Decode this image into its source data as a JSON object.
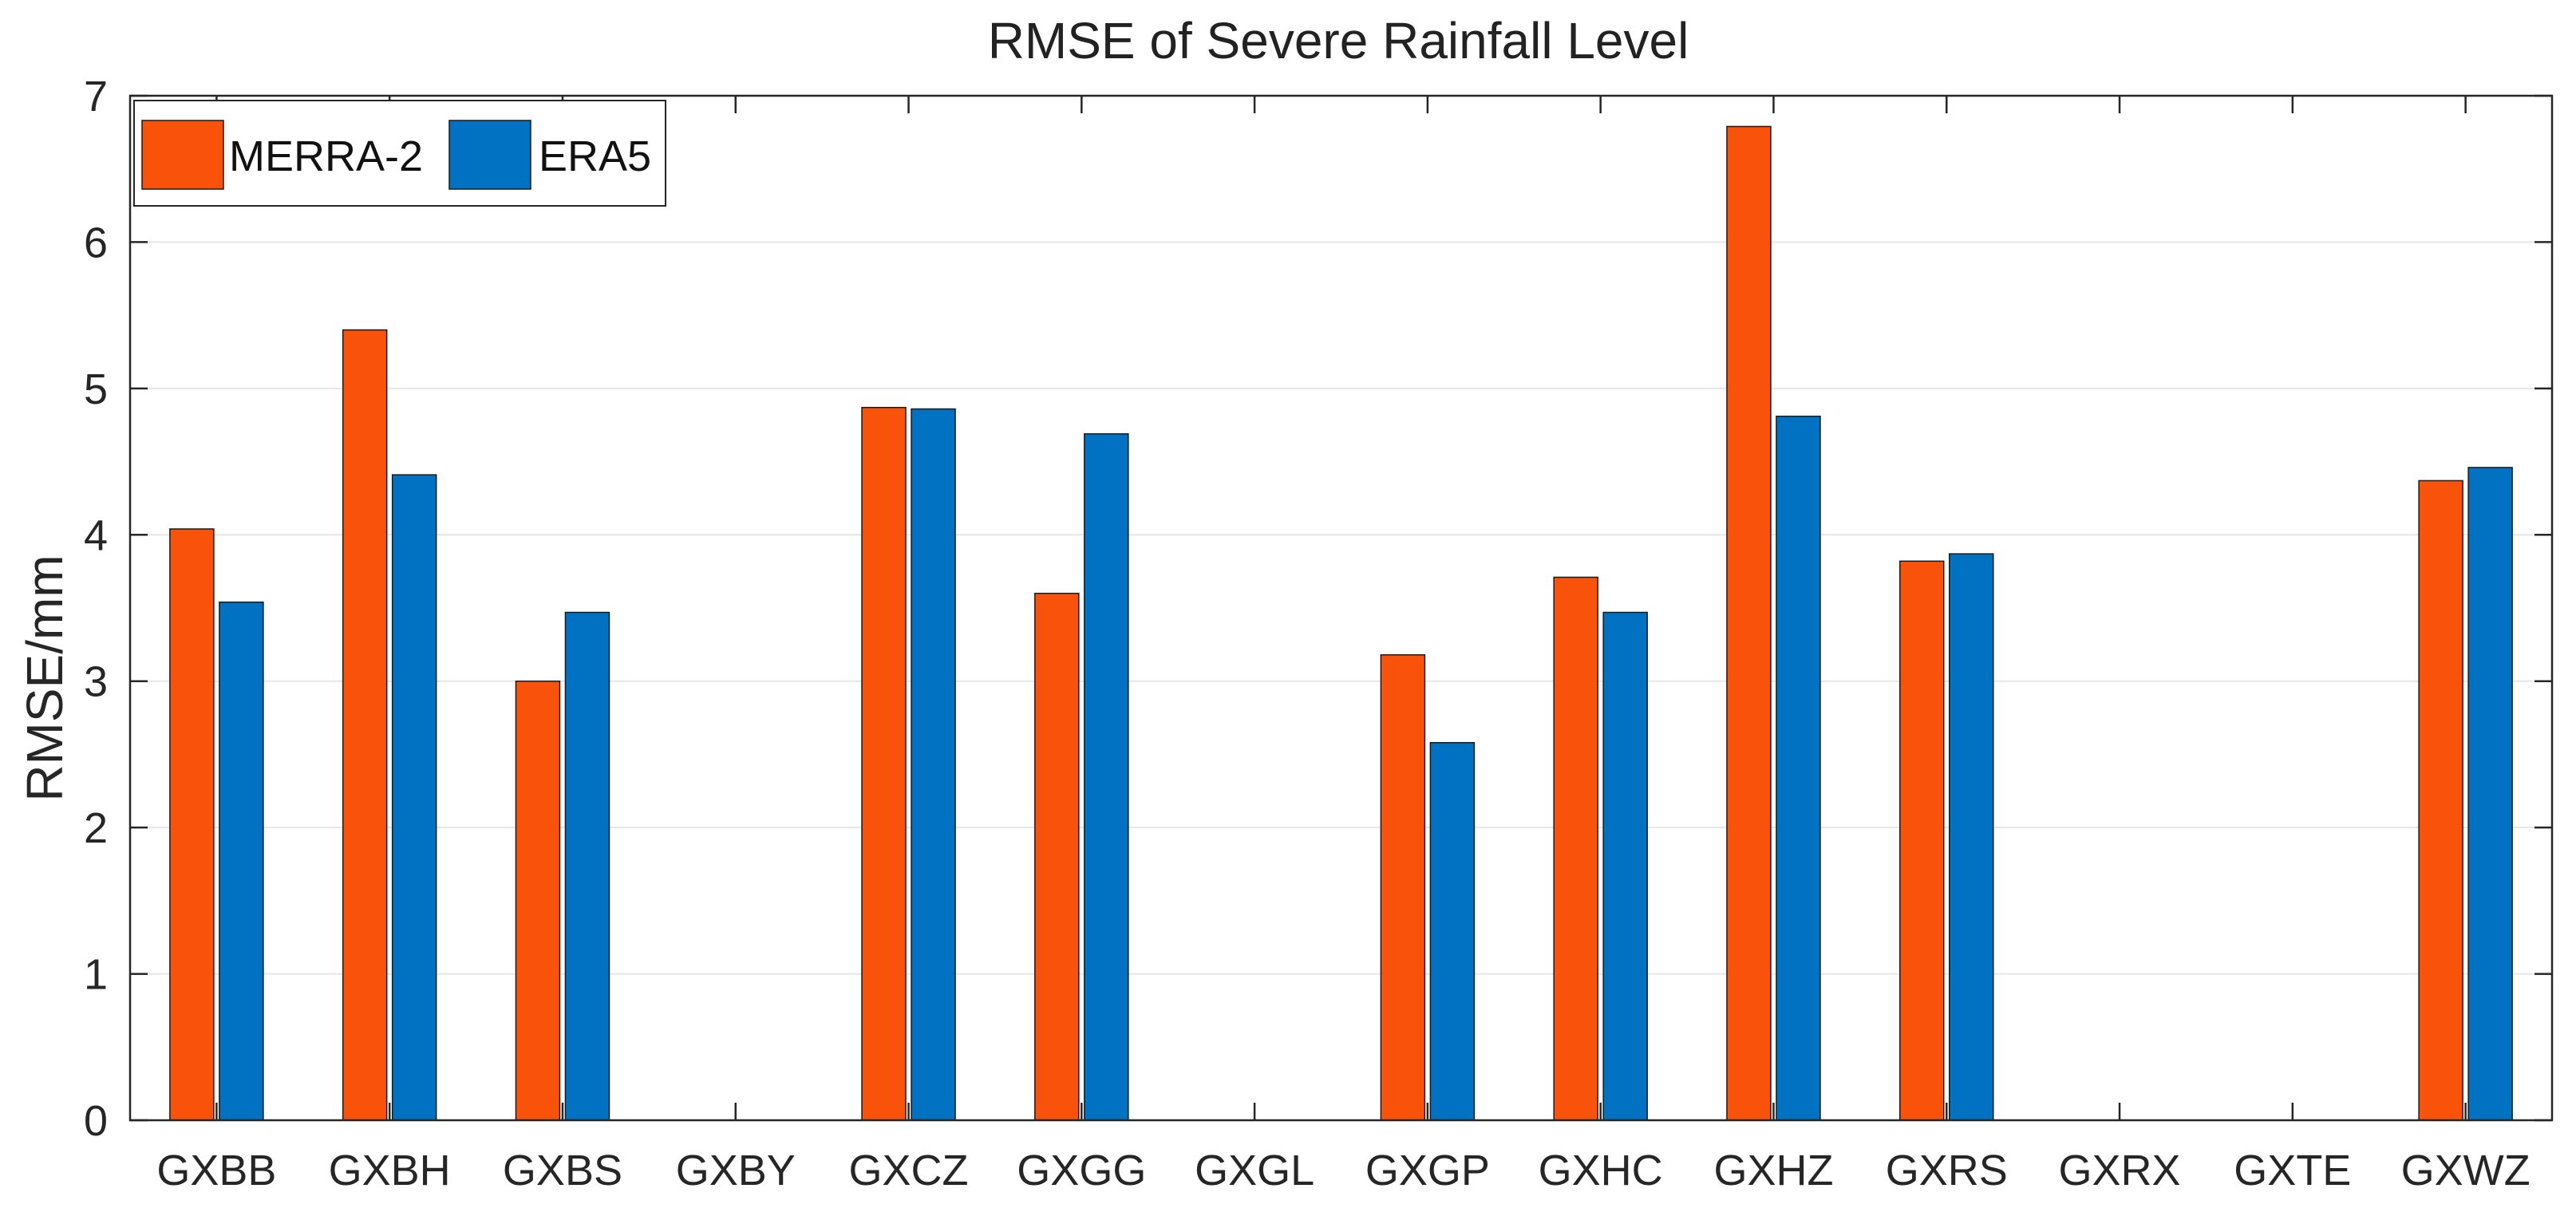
{
  "chart_data": {
    "type": "bar",
    "title": "RMSE of Severe Rainfall Level",
    "xlabel": "",
    "ylabel": "RMSE/mm",
    "ylim": [
      0,
      7
    ],
    "yticks": [
      0,
      1,
      2,
      3,
      4,
      5,
      6,
      7
    ],
    "grid": true,
    "legend_position": "top-left",
    "categories": [
      "GXBB",
      "GXBH",
      "GXBS",
      "GXBY",
      "GXCZ",
      "GXGG",
      "GXGL",
      "GXGP",
      "GXHC",
      "GXHZ",
      "GXRS",
      "GXRX",
      "GXTE",
      "GXWZ"
    ],
    "series": [
      {
        "name": "MERRA-2",
        "color": "#F9520A",
        "values": [
          4.04,
          5.4,
          3.0,
          null,
          4.87,
          3.6,
          null,
          3.18,
          3.71,
          6.79,
          3.82,
          null,
          null,
          4.37
        ]
      },
      {
        "name": "ERA5",
        "color": "#0072C1",
        "values": [
          3.54,
          4.41,
          3.47,
          null,
          4.86,
          4.69,
          null,
          2.58,
          3.47,
          4.81,
          3.87,
          null,
          null,
          4.46
        ]
      }
    ]
  }
}
